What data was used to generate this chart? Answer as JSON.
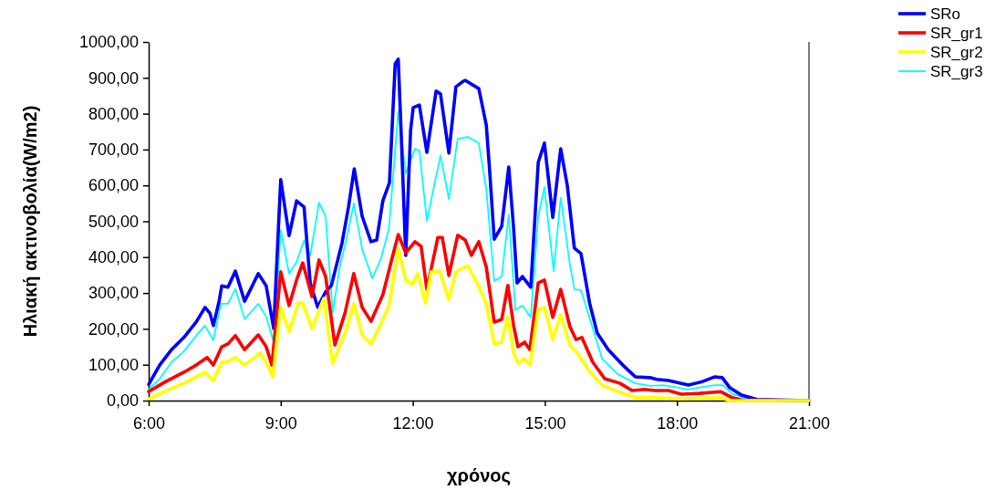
{
  "chart_data": {
    "type": "line",
    "xlabel": "χρόνος",
    "ylabel": "Ηλιακή ακτινοβολία(W/m2)",
    "xlim": [
      6,
      21
    ],
    "xticks": [
      {
        "value": 6,
        "label": "6:00"
      },
      {
        "value": 9,
        "label": "9:00"
      },
      {
        "value": 12,
        "label": "12:00"
      },
      {
        "value": 15,
        "label": "15:00"
      },
      {
        "value": 18,
        "label": "18:00"
      },
      {
        "value": 21,
        "label": "21:00"
      }
    ],
    "ylim": [
      0,
      1000
    ],
    "yticks": [
      {
        "value": 0,
        "label": "0,00"
      },
      {
        "value": 100,
        "label": "100,00"
      },
      {
        "value": 200,
        "label": "200,00"
      },
      {
        "value": 300,
        "label": "300,00"
      },
      {
        "value": 400,
        "label": "400,00"
      },
      {
        "value": 500,
        "label": "500,00"
      },
      {
        "value": 600,
        "label": "600,00"
      },
      {
        "value": 700,
        "label": "700,00"
      },
      {
        "value": 800,
        "label": "800,00"
      },
      {
        "value": 900,
        "label": "900,00"
      },
      {
        "value": 1000,
        "label": "1000,00"
      }
    ],
    "grid": false,
    "legend": "top right",
    "marker": "none",
    "line_style": "solid",
    "series": [
      {
        "name": "SRo",
        "color": "#0000ff",
        "x": [
          6.0,
          6.25,
          6.52,
          6.8,
          7.08,
          7.28,
          7.39,
          7.47,
          7.6,
          7.66,
          7.8,
          7.97,
          8.18,
          8.49,
          8.67,
          8.84,
          9.0,
          9.19,
          9.36,
          9.53,
          9.67,
          9.84,
          10.02,
          10.15,
          10.39,
          10.54,
          10.67,
          10.85,
          11.05,
          11.18,
          11.32,
          11.47,
          11.6,
          11.67,
          11.74,
          11.84,
          11.95,
          12.01,
          12.15,
          12.32,
          12.53,
          12.63,
          12.82,
          12.98,
          13.15,
          13.19,
          13.5,
          13.67,
          13.75,
          13.85,
          14.02,
          14.18,
          14.29,
          14.37,
          14.49,
          14.68,
          14.85,
          14.99,
          15.18,
          15.36,
          15.51,
          15.67,
          15.82,
          16.02,
          16.19,
          16.44,
          16.77,
          17.06,
          17.39,
          17.54,
          17.81,
          18.26,
          18.58,
          18.85,
          19.03,
          19.2,
          19.47,
          19.82,
          21.0
        ],
        "values": [
          45,
          99,
          142,
          176,
          219,
          260,
          244,
          209,
          277,
          320,
          316,
          361,
          277,
          354,
          320,
          201,
          616,
          460,
          557,
          540,
          328,
          260,
          303,
          321,
          438,
          540,
          646,
          514,
          443,
          448,
          557,
          608,
          939,
          952,
          735,
          405,
          753,
          817,
          824,
          692,
          863,
          855,
          690,
          875,
          891,
          893,
          870,
          768,
          634,
          450,
          486,
          651,
          481,
          328,
          346,
          316,
          664,
          718,
          511,
          702,
          600,
          425,
          410,
          270,
          188,
          142,
          99,
          66,
          64,
          59,
          56,
          43,
          53,
          66,
          64,
          36,
          15,
          3,
          0
        ]
      },
      {
        "name": "SR_gr1",
        "color": "#ff0000",
        "x": [
          6.0,
          6.39,
          6.8,
          7.08,
          7.33,
          7.47,
          7.66,
          7.8,
          7.97,
          8.18,
          8.49,
          8.67,
          8.8,
          9.0,
          9.19,
          9.36,
          9.5,
          9.71,
          9.87,
          10.02,
          10.23,
          10.46,
          10.66,
          10.85,
          11.05,
          11.32,
          11.53,
          11.67,
          11.84,
          12.05,
          12.19,
          12.32,
          12.57,
          12.67,
          12.82,
          13.02,
          13.19,
          13.33,
          13.5,
          13.67,
          13.85,
          14.02,
          14.16,
          14.29,
          14.39,
          14.54,
          14.66,
          14.85,
          14.99,
          15.18,
          15.36,
          15.57,
          15.71,
          15.84,
          16.09,
          16.36,
          16.71,
          16.98,
          17.27,
          17.5,
          17.81,
          18.1,
          18.51,
          18.99,
          19.26,
          19.47,
          21.0
        ],
        "values": [
          25,
          53,
          79,
          99,
          120,
          99,
          150,
          158,
          181,
          142,
          183,
          150,
          99,
          359,
          265,
          336,
          384,
          290,
          392,
          346,
          155,
          244,
          354,
          260,
          221,
          295,
          397,
          463,
          412,
          443,
          430,
          310,
          455,
          455,
          349,
          461,
          448,
          405,
          443,
          372,
          219,
          226,
          321,
          209,
          150,
          163,
          142,
          328,
          336,
          232,
          310,
          206,
          170,
          176,
          107,
          61,
          48,
          28,
          31,
          28,
          28,
          18,
          20,
          25,
          8,
          2,
          0
        ]
      },
      {
        "name": "SR_gr2",
        "color": "#ffff00",
        "x": [
          6.0,
          6.46,
          6.8,
          7.28,
          7.47,
          7.66,
          7.8,
          7.97,
          8.18,
          8.53,
          8.67,
          8.82,
          9.0,
          9.19,
          9.4,
          9.5,
          9.71,
          9.98,
          10.18,
          10.46,
          10.66,
          10.85,
          11.05,
          11.28,
          11.46,
          11.67,
          11.84,
          11.98,
          12.11,
          12.29,
          12.42,
          12.61,
          12.82,
          12.98,
          13.25,
          13.46,
          13.67,
          13.85,
          14.02,
          14.16,
          14.29,
          14.39,
          14.54,
          14.66,
          14.85,
          14.99,
          15.18,
          15.36,
          15.57,
          15.74,
          16.02,
          16.3,
          16.71,
          17.06,
          17.54,
          18.1,
          18.99,
          19.2,
          21.0
        ],
        "values": [
          5,
          31,
          48,
          79,
          56,
          107,
          109,
          120,
          99,
          132,
          107,
          66,
          260,
          193,
          272,
          272,
          201,
          285,
          104,
          188,
          270,
          183,
          158,
          214,
          265,
          425,
          336,
          323,
          354,
          272,
          359,
          361,
          282,
          359,
          376,
          328,
          270,
          158,
          163,
          234,
          132,
          104,
          117,
          99,
          252,
          260,
          170,
          239,
          155,
          132,
          81,
          43,
          23,
          8,
          8,
          5,
          8,
          0,
          0
        ]
      },
      {
        "name": "SR_gr3",
        "color": "#00ffff",
        "x": [
          6.0,
          6.25,
          6.52,
          6.8,
          7.08,
          7.28,
          7.47,
          7.64,
          7.8,
          7.97,
          8.18,
          8.49,
          8.67,
          8.84,
          9.0,
          9.19,
          9.36,
          9.53,
          9.67,
          9.87,
          10.02,
          10.18,
          10.35,
          10.49,
          10.66,
          10.85,
          11.08,
          11.28,
          11.46,
          11.67,
          11.84,
          12.05,
          12.15,
          12.32,
          12.63,
          12.82,
          13.02,
          13.25,
          13.5,
          13.67,
          13.85,
          14.02,
          14.18,
          14.33,
          14.49,
          14.68,
          14.85,
          14.99,
          15.2,
          15.36,
          15.57,
          15.67,
          15.82,
          16.09,
          16.3,
          16.65,
          17.06,
          17.39,
          17.68,
          17.95,
          18.26,
          18.58,
          18.85,
          19.05,
          19.26,
          19.61,
          19.82,
          21.0
        ],
        "values": [
          31,
          61,
          107,
          137,
          181,
          209,
          168,
          270,
          270,
          311,
          227,
          270,
          234,
          163,
          476,
          354,
          387,
          447,
          405,
          552,
          514,
          244,
          379,
          447,
          550,
          422,
          341,
          397,
          481,
          807,
          634,
          702,
          697,
          501,
          684,
          562,
          730,
          735,
          718,
          590,
          333,
          346,
          519,
          252,
          265,
          232,
          514,
          595,
          361,
          565,
          379,
          310,
          308,
          201,
          117,
          74,
          48,
          41,
          43,
          38,
          31,
          38,
          43,
          43,
          18,
          5,
          0,
          0
        ]
      }
    ]
  }
}
